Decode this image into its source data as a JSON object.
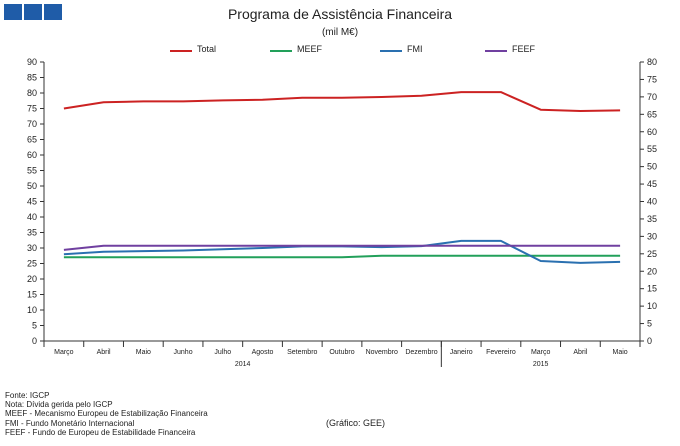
{
  "header": {
    "logo_icon": "blue-squares-logo"
  },
  "chart_data": {
    "type": "line",
    "title": "Programa de Assistência Financeira",
    "subtitle": "(mil M€)",
    "categories": [
      "Março",
      "Abril",
      "Maio",
      "Junho",
      "Julho",
      "Agosto",
      "Setembro",
      "Outubro",
      "Novembro",
      "Dezembro",
      "Janeiro",
      "Fevereiro",
      "Março",
      "Abril",
      "Maio"
    ],
    "year_groups": [
      {
        "label": "2014",
        "start": 0,
        "end": 9
      },
      {
        "label": "2015",
        "start": 10,
        "end": 14
      }
    ],
    "y_left": {
      "min": 0,
      "max": 90,
      "step": 5
    },
    "y_right": {
      "min": 0,
      "max": 80,
      "step": 5
    },
    "grid": false,
    "legend_position": "top",
    "series": [
      {
        "name": "Total",
        "color": "#cc2222",
        "axis": "left",
        "values": [
          75.0,
          77.0,
          77.3,
          77.3,
          77.6,
          77.8,
          78.5,
          78.5,
          78.7,
          79.1,
          80.3,
          80.3,
          74.6,
          74.2,
          74.4
        ]
      },
      {
        "name": "MEEF",
        "color": "#22a05a",
        "axis": "left",
        "values": [
          27.0,
          27.0,
          27.0,
          27.0,
          27.0,
          27.0,
          27.0,
          27.0,
          27.5,
          27.5,
          27.5,
          27.5,
          27.5,
          27.5,
          27.5
        ]
      },
      {
        "name": "FMI",
        "color": "#2a70b0",
        "axis": "left",
        "values": [
          28.0,
          28.8,
          29.0,
          29.2,
          29.6,
          30.0,
          30.5,
          30.5,
          30.3,
          30.6,
          32.3,
          32.3,
          25.8,
          25.2,
          25.5
        ]
      },
      {
        "name": "FEEF",
        "color": "#7040a0",
        "axis": "left",
        "values": [
          29.4,
          30.7,
          30.7,
          30.7,
          30.7,
          30.7,
          30.7,
          30.7,
          30.7,
          30.7,
          30.7,
          30.7,
          30.7,
          30.7,
          30.7
        ]
      }
    ]
  },
  "notes": [
    "Fonte: IGCP",
    "Nota: Dívida gerida pelo IGCP",
    "MEEF - Mecanismo Europeu de Estabilização Financeira",
    "FMI - Fundo Monetário Internacional",
    "FEEF - Fundo de Europeu de Estabilidade Financeira"
  ],
  "credit": "(Gráfico: GEE)"
}
